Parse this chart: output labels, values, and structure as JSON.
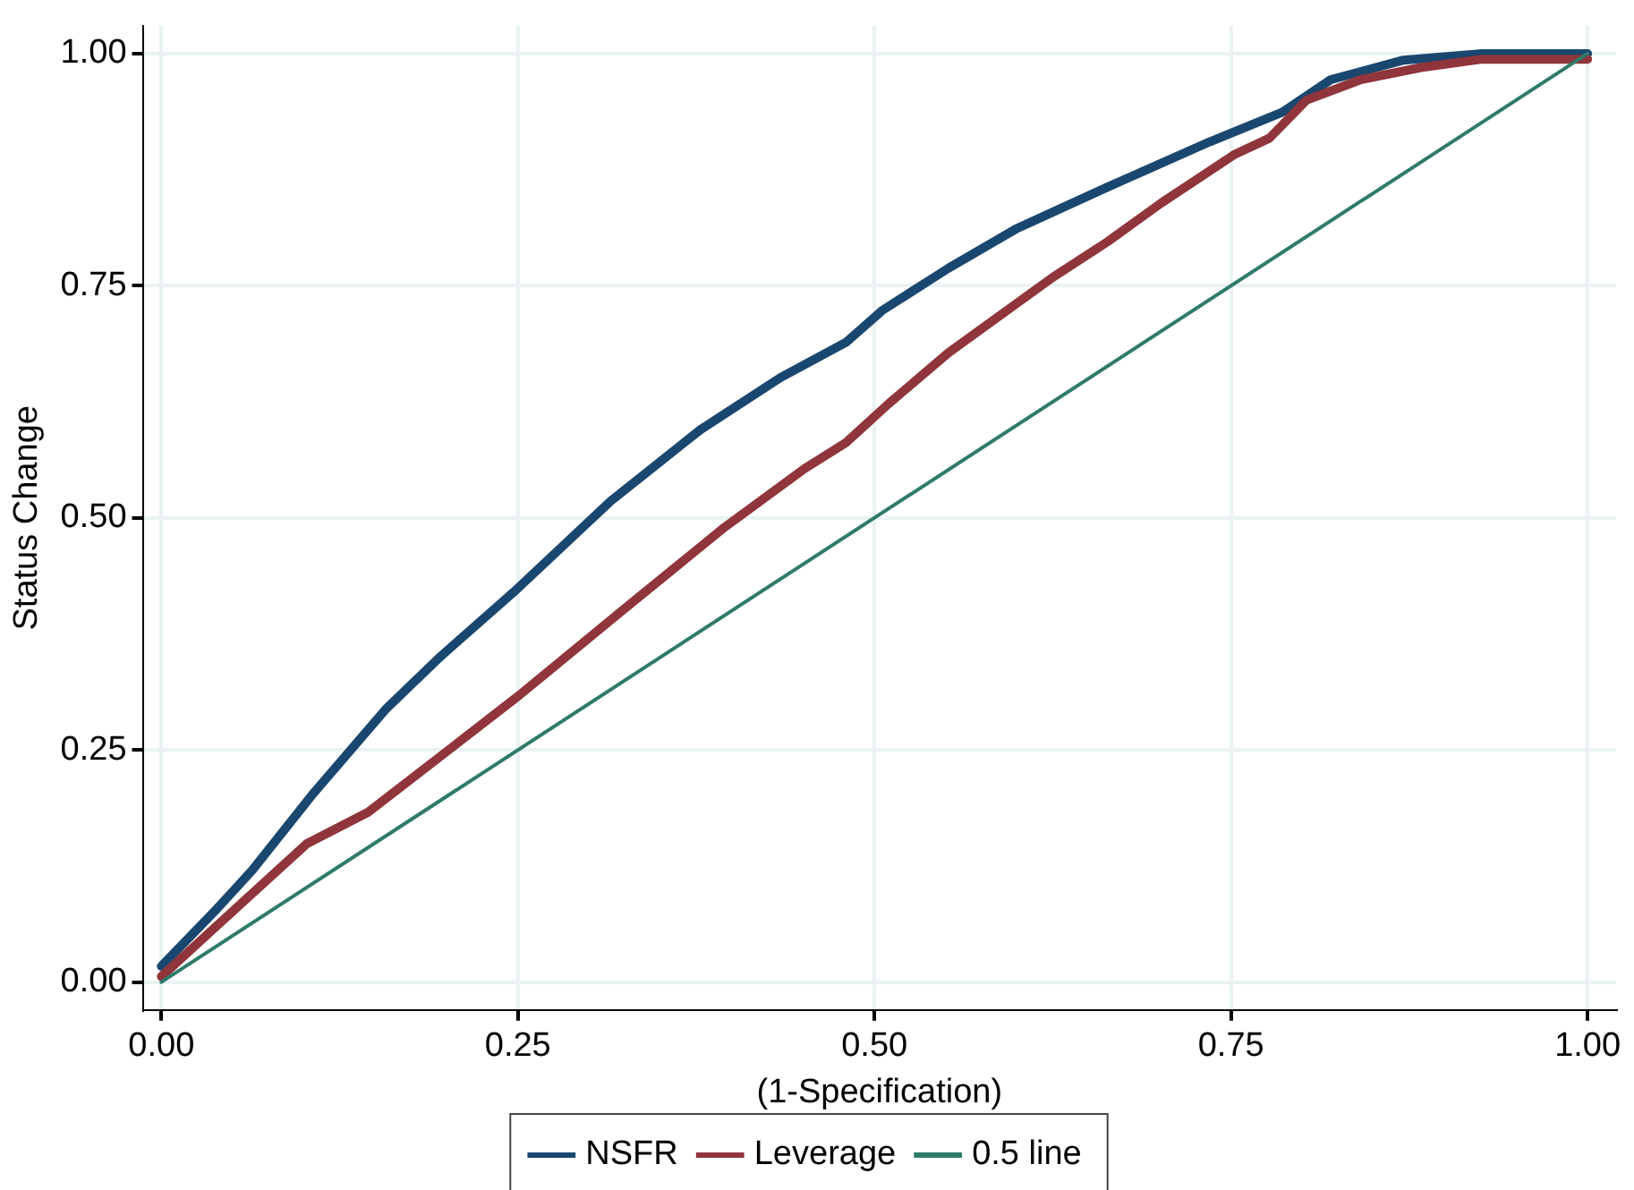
{
  "chart_data": {
    "type": "line",
    "xlabel": "(1-Specification)",
    "ylabel": "Status Change",
    "xlim": [
      -0.013,
      1.02
    ],
    "ylim": [
      -0.03,
      1.03
    ],
    "xticks": [
      {
        "value": 0,
        "label": "0.00"
      },
      {
        "value": 0.25,
        "label": "0.25"
      },
      {
        "value": 0.5,
        "label": "0.50"
      },
      {
        "value": 0.75,
        "label": "0.75"
      },
      {
        "value": 1,
        "label": "1.00"
      }
    ],
    "yticks": [
      {
        "value": 0,
        "label": "0.00"
      },
      {
        "value": 0.25,
        "label": "0.25"
      },
      {
        "value": 0.5,
        "label": "0.50"
      },
      {
        "value": 0.75,
        "label": "0.75"
      },
      {
        "value": 1,
        "label": "1.00"
      }
    ],
    "grid": true,
    "legend": "bottom",
    "series": [
      {
        "name": "NSFR",
        "color": "#1a476f",
        "x": [
          0,
          0.039,
          0.064,
          0.107,
          0.158,
          0.196,
          0.247,
          0.315,
          0.378,
          0.434,
          0.48,
          0.506,
          0.552,
          0.599,
          0.663,
          0.735,
          0.786,
          0.82,
          0.871,
          0.926,
          1
        ],
        "values": [
          0.017,
          0.079,
          0.121,
          0.204,
          0.295,
          0.351,
          0.42,
          0.518,
          0.595,
          0.651,
          0.689,
          0.724,
          0.769,
          0.811,
          0.856,
          0.905,
          0.937,
          0.972,
          0.993,
          1,
          1
        ]
      },
      {
        "name": "Leverage",
        "color": "#90353b",
        "x": [
          0,
          0.047,
          0.102,
          0.145,
          0.204,
          0.251,
          0.323,
          0.395,
          0.451,
          0.48,
          0.51,
          0.552,
          0.625,
          0.663,
          0.701,
          0.752,
          0.777,
          0.803,
          0.841,
          0.883,
          0.926,
          1
        ],
        "values": [
          0.006,
          0.072,
          0.149,
          0.183,
          0.253,
          0.309,
          0.4,
          0.49,
          0.553,
          0.581,
          0.623,
          0.678,
          0.759,
          0.797,
          0.839,
          0.891,
          0.909,
          0.95,
          0.972,
          0.985,
          0.994,
          0.994
        ]
      },
      {
        "name": "0.5 line",
        "color": "#2e7b6b",
        "x": [
          0,
          1
        ],
        "values": [
          0,
          1
        ]
      }
    ]
  }
}
